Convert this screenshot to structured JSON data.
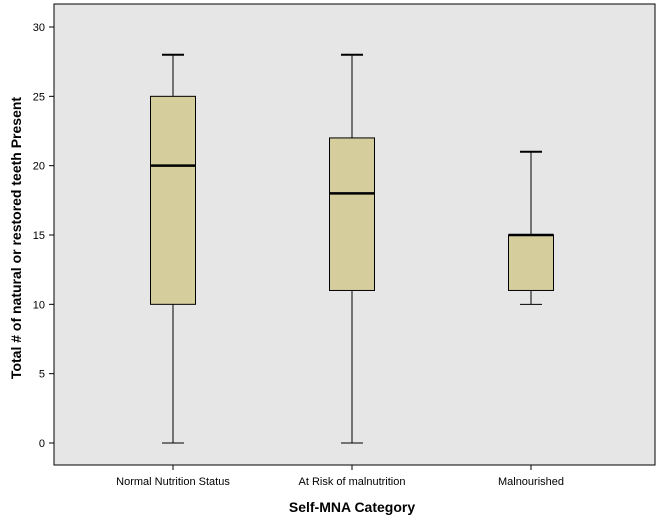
{
  "chart_data": {
    "type": "boxplot",
    "xlabel": "Self-MNA Category",
    "ylabel": "Total # of natural or restored teeth Present",
    "ylim": [
      0,
      31
    ],
    "yticks": [
      0,
      5,
      10,
      15,
      20,
      25,
      30
    ],
    "categories": [
      "Normal Nutrition Status",
      "At Risk of malnutrition",
      "Malnourished"
    ],
    "boxes": [
      {
        "category": "Normal Nutrition Status",
        "min": 0,
        "q1": 10,
        "median": 20,
        "q3": 25,
        "max": 28
      },
      {
        "category": "At Risk of malnutrition",
        "min": 0,
        "q1": 11,
        "median": 18,
        "q3": 22,
        "max": 28
      },
      {
        "category": "Malnourished",
        "min": 10,
        "q1": 11,
        "median": 15,
        "q3": 15,
        "max": 21
      }
    ],
    "grid": false,
    "colors": {
      "plot_background": "#e6e6e6",
      "box_fill": "#d5cd9b",
      "stroke": "#000000"
    }
  }
}
